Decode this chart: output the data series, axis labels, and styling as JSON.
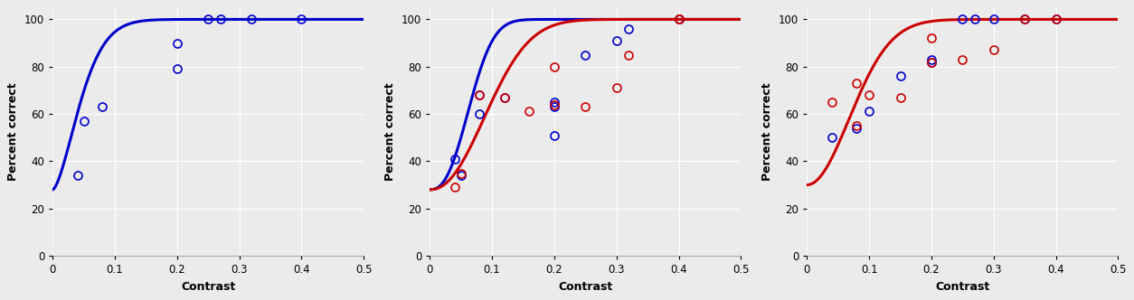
{
  "subplots": [
    {
      "points_blue": [
        [
          0.04,
          34
        ],
        [
          0.05,
          57
        ],
        [
          0.08,
          63
        ],
        [
          0.2,
          79
        ],
        [
          0.2,
          90
        ],
        [
          0.25,
          100
        ],
        [
          0.27,
          100
        ],
        [
          0.32,
          100
        ],
        [
          0.4,
          100
        ]
      ],
      "points_red": [],
      "curve_blue": {
        "alpha": 0.055,
        "beta": 1.6,
        "gamma": 0.28,
        "lam": 0.0
      },
      "curve_red": null
    },
    {
      "points_blue": [
        [
          0.04,
          41
        ],
        [
          0.05,
          34
        ],
        [
          0.08,
          60
        ],
        [
          0.08,
          68
        ],
        [
          0.12,
          67
        ],
        [
          0.2,
          51
        ],
        [
          0.2,
          65
        ],
        [
          0.2,
          63
        ],
        [
          0.25,
          85
        ],
        [
          0.3,
          91
        ],
        [
          0.32,
          96
        ],
        [
          0.4,
          100
        ],
        [
          0.4,
          100
        ]
      ],
      "points_red": [
        [
          0.04,
          29
        ],
        [
          0.05,
          35
        ],
        [
          0.08,
          68
        ],
        [
          0.12,
          67
        ],
        [
          0.16,
          61
        ],
        [
          0.2,
          64
        ],
        [
          0.2,
          80
        ],
        [
          0.25,
          63
        ],
        [
          0.3,
          71
        ],
        [
          0.32,
          85
        ],
        [
          0.4,
          100
        ],
        [
          0.4,
          100
        ]
      ],
      "curve_blue": {
        "alpha": 0.075,
        "beta": 2.5,
        "gamma": 0.28,
        "lam": 0.0
      },
      "curve_red": {
        "alpha": 0.115,
        "beta": 2.2,
        "gamma": 0.28,
        "lam": 0.0
      }
    },
    {
      "points_blue": [
        [
          0.04,
          50
        ],
        [
          0.08,
          54
        ],
        [
          0.1,
          61
        ],
        [
          0.15,
          76
        ],
        [
          0.2,
          83
        ],
        [
          0.2,
          82
        ],
        [
          0.25,
          100
        ],
        [
          0.27,
          100
        ],
        [
          0.3,
          100
        ],
        [
          0.35,
          100
        ],
        [
          0.4,
          100
        ]
      ],
      "points_red": [
        [
          0.04,
          65
        ],
        [
          0.08,
          73
        ],
        [
          0.08,
          55
        ],
        [
          0.1,
          68
        ],
        [
          0.15,
          67
        ],
        [
          0.2,
          92
        ],
        [
          0.2,
          82
        ],
        [
          0.25,
          83
        ],
        [
          0.3,
          87
        ],
        [
          0.35,
          100
        ],
        [
          0.4,
          100
        ]
      ],
      "curve_blue": null,
      "curve_red": {
        "alpha": 0.095,
        "beta": 2.0,
        "gamma": 0.3,
        "lam": 0.0
      }
    }
  ],
  "xlabel": "Contrast",
  "ylabel": "Percent correct",
  "blue": "#0000CC",
  "red": "#CC0000",
  "bg_color": "#ebebeb",
  "grid_color": "#ffffff",
  "line_width": 2.2,
  "marker_size": 6.5,
  "marker_lw": 1.2,
  "fig_width": 12.54,
  "fig_height": 3.32,
  "xlim": [
    0,
    0.5
  ],
  "ylim": [
    0,
    105
  ],
  "yticks": [
    0,
    20,
    40,
    60,
    80,
    100
  ],
  "xticks": [
    0,
    0.1,
    0.2,
    0.3,
    0.4,
    0.5
  ]
}
